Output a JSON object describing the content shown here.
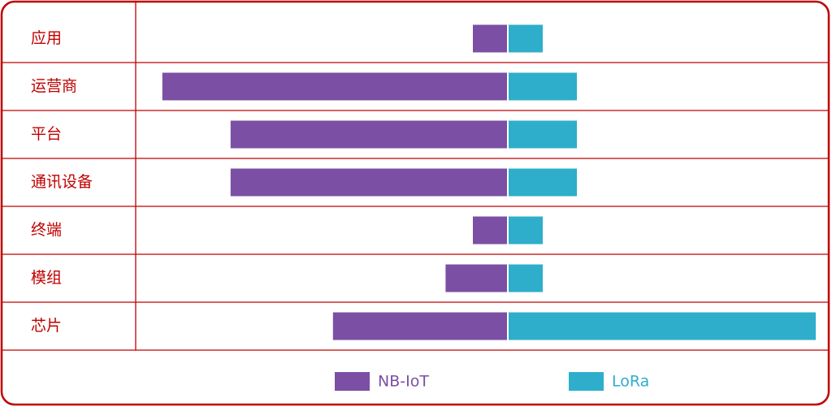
{
  "chart_data": {
    "type": "bar",
    "categories": [
      "应用",
      "运营商",
      "平台",
      "通讯设备",
      "终端",
      "模组",
      "芯片"
    ],
    "series": [
      {
        "name": "NB-IoT",
        "color": "#7b4fa3",
        "values": [
          1,
          10.1,
          8.1,
          8.1,
          1,
          1.8,
          5.1
        ]
      },
      {
        "name": "LoRa",
        "color": "#2eaecb",
        "values": [
          1,
          2,
          2,
          2,
          1,
          1,
          9
        ]
      }
    ]
  }
}
